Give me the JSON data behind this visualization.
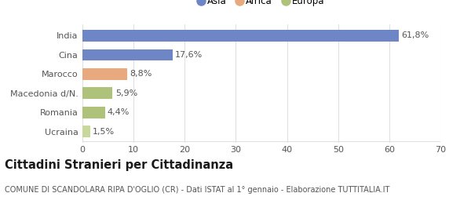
{
  "categories": [
    "India",
    "Cina",
    "Marocco",
    "Macedonia d/N.",
    "Romania",
    "Ucraina"
  ],
  "values": [
    61.8,
    17.6,
    8.8,
    5.9,
    4.4,
    1.5
  ],
  "labels": [
    "61,8%",
    "17,6%",
    "8,8%",
    "5,9%",
    "4,4%",
    "1,5%"
  ],
  "colors": [
    "#6f86c6",
    "#6f86c6",
    "#e8a97e",
    "#afc27a",
    "#afc27a",
    "#c8d89a"
  ],
  "legend_labels": [
    "Asia",
    "Africa",
    "Europa"
  ],
  "legend_colors": [
    "#6f86c6",
    "#e8a97e",
    "#afc27a"
  ],
  "xlim": [
    0,
    70
  ],
  "xticks": [
    0,
    10,
    20,
    30,
    40,
    50,
    60,
    70
  ],
  "title": "Cittadini Stranieri per Cittadinanza",
  "subtitle": "COMUNE DI SCANDOLARA RIPA D'OGLIO (CR) - Dati ISTAT al 1° gennaio - Elaborazione TUTTITALIA.IT",
  "background_color": "#ffffff",
  "grid_color": "#e0e0e0",
  "bar_height": 0.6,
  "label_fontsize": 8,
  "tick_fontsize": 8,
  "title_fontsize": 10.5,
  "subtitle_fontsize": 7
}
